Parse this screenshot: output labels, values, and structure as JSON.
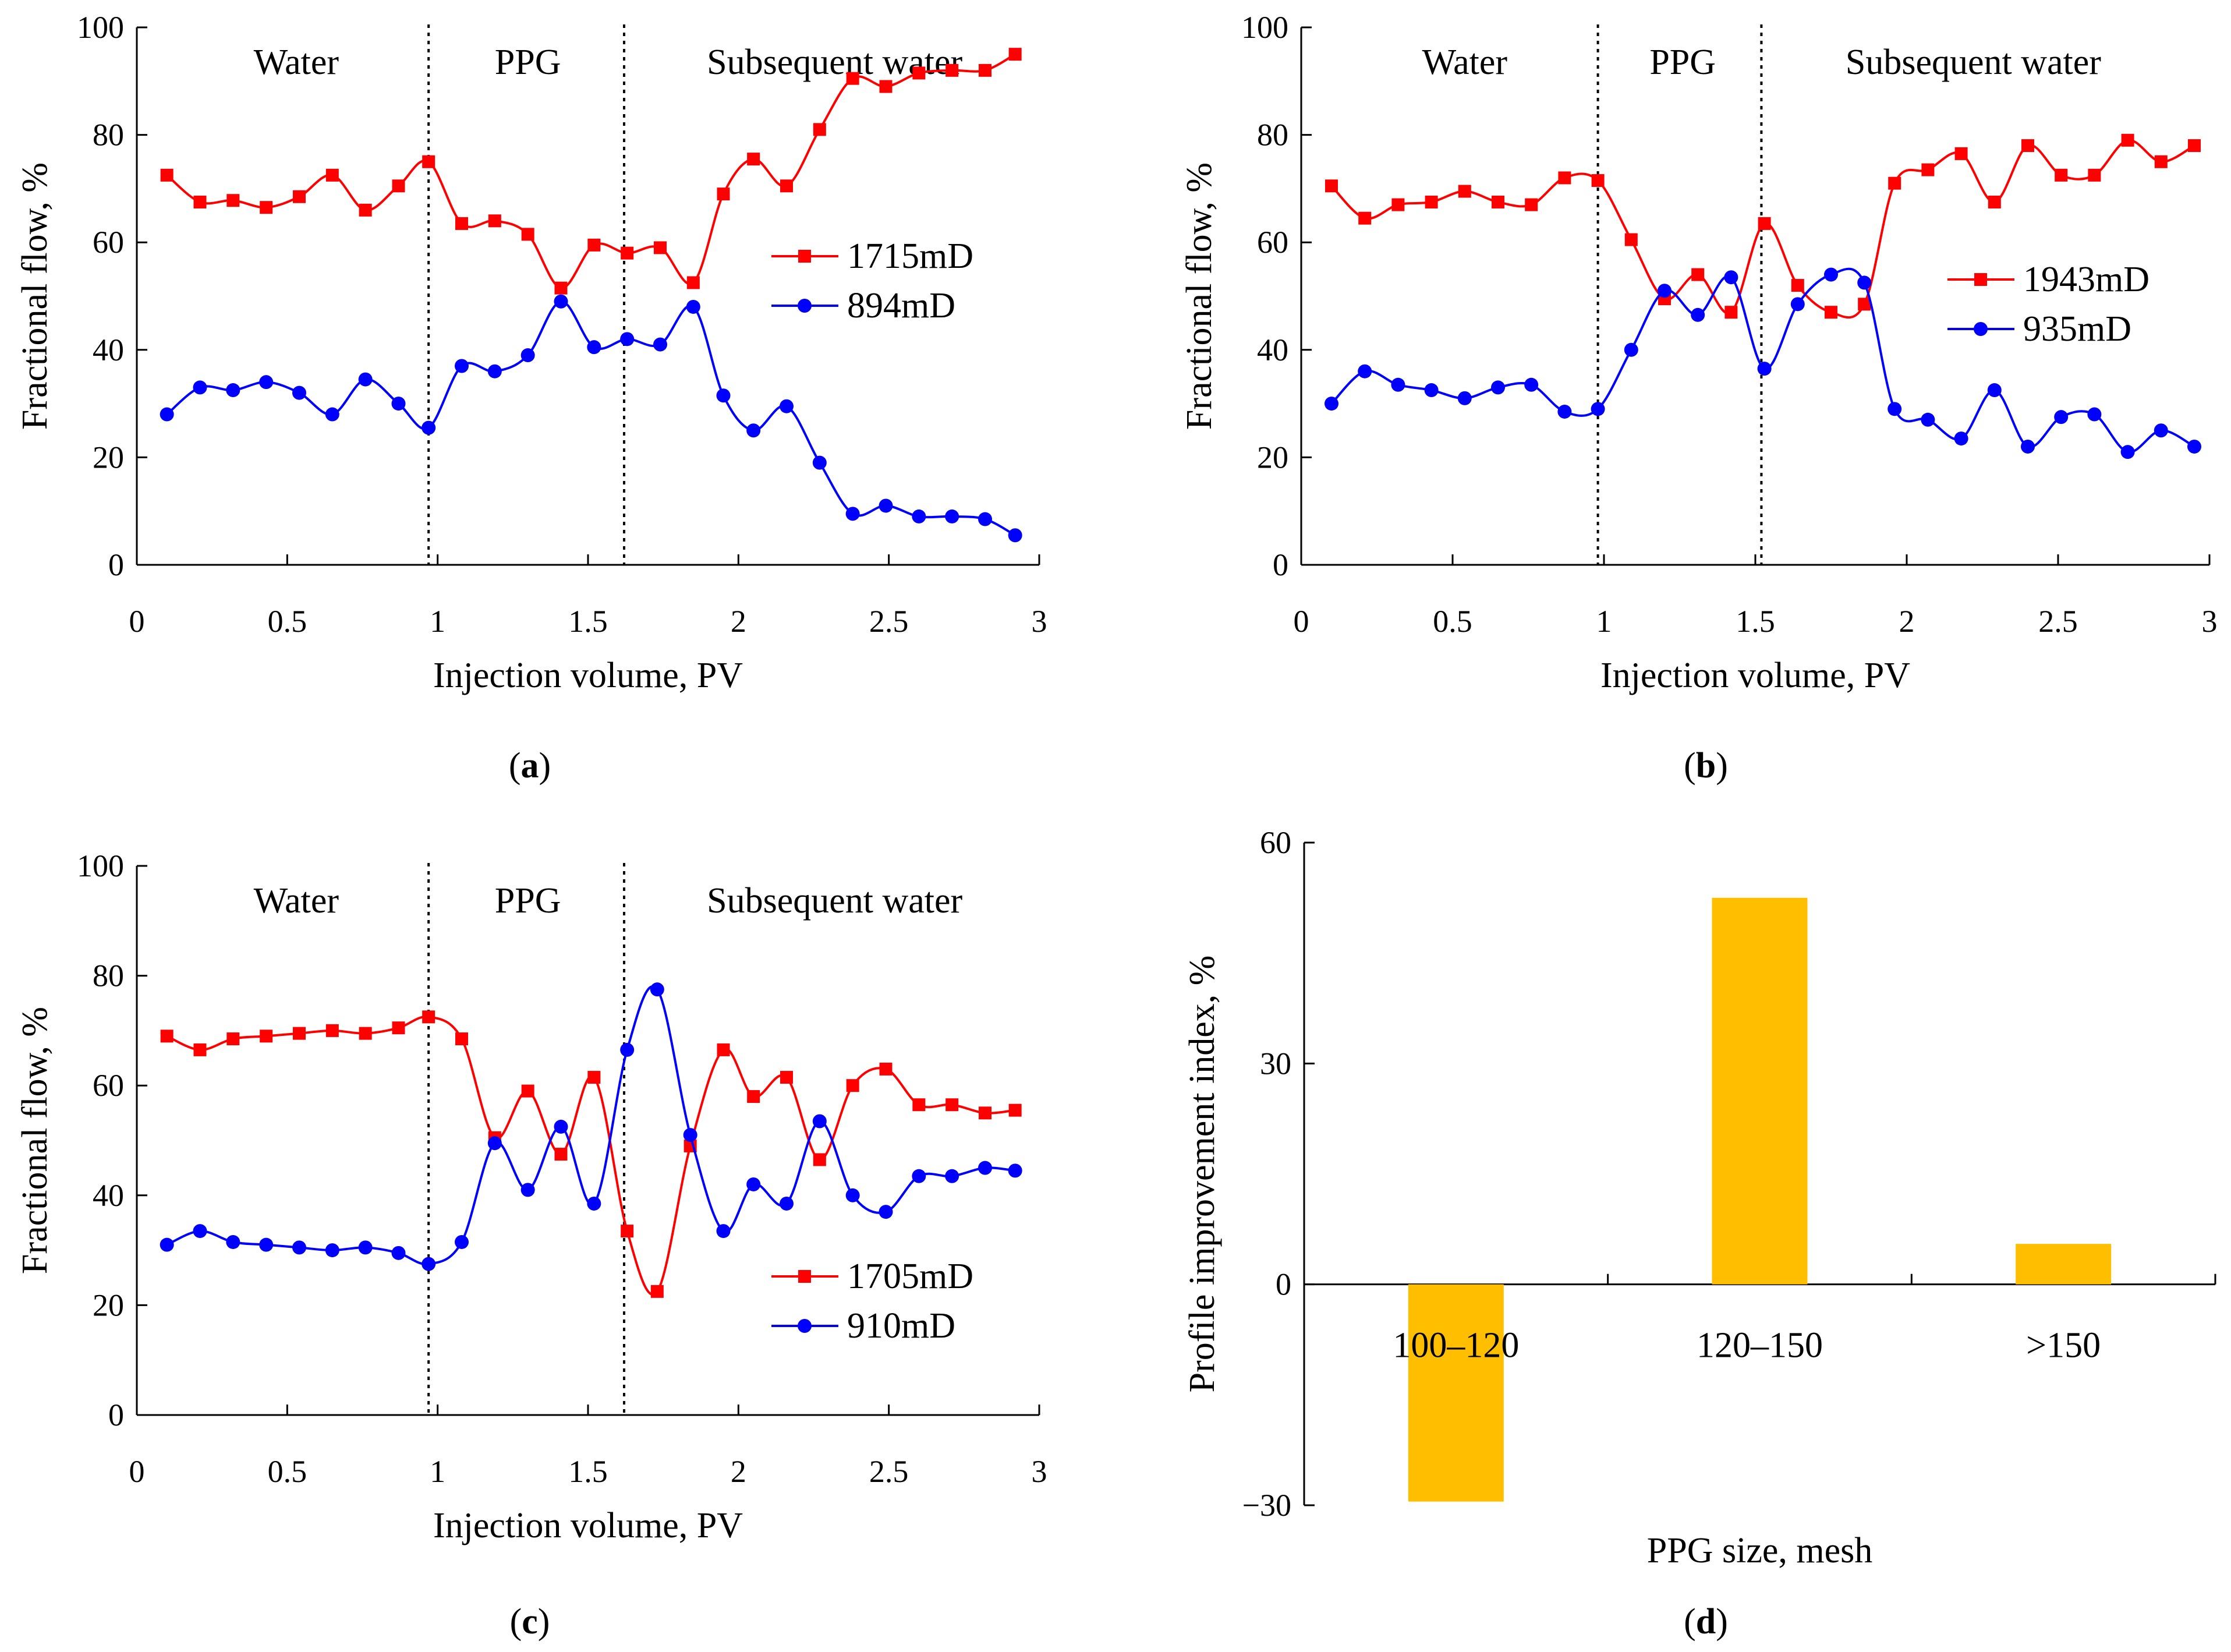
{
  "figure": {
    "panel_labels": [
      "a",
      "b",
      "c",
      "d"
    ]
  },
  "colors": {
    "series_high": "#ff0000",
    "series_low": "#0000ff",
    "bar": "#ffbf00",
    "axis": "#000000"
  },
  "chart_data": [
    {
      "id": "a",
      "type": "line",
      "xlabel": "Injection volume, PV",
      "ylabel": "Fractional flow, %",
      "xlim": [
        0,
        3
      ],
      "ylim": [
        0,
        100
      ],
      "xticks": [
        0,
        0.5,
        1,
        1.5,
        2,
        2.5,
        3
      ],
      "xtick_labels": [
        "0",
        "0.5",
        "1",
        "1.5",
        "2",
        "2.5",
        "3"
      ],
      "yticks": [
        0,
        20,
        40,
        60,
        80,
        100
      ],
      "ytick_labels": [
        "0",
        "20",
        "40",
        "60",
        "80",
        "100"
      ],
      "phase_boundaries": [
        0.97,
        1.62
      ],
      "phases": [
        {
          "label": "Water",
          "x": 0.53
        },
        {
          "label": "PPG",
          "x": 1.3
        },
        {
          "label": "Subsequent water",
          "x": 2.32
        }
      ],
      "legend_position": "center-right",
      "series": [
        {
          "name": "1715mD",
          "marker": "square",
          "color_key": "series_high",
          "x": [
            0.1,
            0.21,
            0.32,
            0.43,
            0.54,
            0.65,
            0.76,
            0.87,
            0.97,
            1.08,
            1.19,
            1.3,
            1.41,
            1.52,
            1.63,
            1.74,
            1.85,
            1.95,
            2.05,
            2.16,
            2.27,
            2.38,
            2.49,
            2.6,
            2.71,
            2.82,
            2.92
          ],
          "values": [
            72.5,
            67.5,
            67.8,
            66.5,
            68.5,
            72.5,
            66.0,
            70.5,
            75.0,
            63.5,
            64.0,
            61.5,
            51.5,
            59.5,
            58.0,
            59.0,
            52.5,
            69.0,
            75.5,
            70.5,
            81.0,
            90.5,
            89.0,
            91.5,
            92.0,
            92.0,
            95.0
          ]
        },
        {
          "name": "894mD",
          "marker": "circle",
          "color_key": "series_low",
          "x": [
            0.1,
            0.21,
            0.32,
            0.43,
            0.54,
            0.65,
            0.76,
            0.87,
            0.97,
            1.08,
            1.19,
            1.3,
            1.41,
            1.52,
            1.63,
            1.74,
            1.85,
            1.95,
            2.05,
            2.16,
            2.27,
            2.38,
            2.49,
            2.6,
            2.71,
            2.82,
            2.92
          ],
          "values": [
            28.0,
            33.0,
            32.5,
            34.0,
            32.0,
            28.0,
            34.5,
            30.0,
            25.5,
            37.0,
            36.0,
            39.0,
            49.0,
            40.5,
            42.0,
            41.0,
            48.0,
            31.5,
            25.0,
            29.5,
            19.0,
            9.5,
            11.0,
            9.0,
            9.0,
            8.5,
            5.5
          ]
        }
      ]
    },
    {
      "id": "b",
      "type": "line",
      "xlabel": "Injection volume, PV",
      "ylabel": "Fractional flow, %",
      "xlim": [
        0,
        3
      ],
      "ylim": [
        0,
        100
      ],
      "xticks": [
        0,
        0.5,
        1,
        1.5,
        2,
        2.5,
        3
      ],
      "xtick_labels": [
        "0",
        "0.5",
        "1",
        "1.5",
        "2",
        "2.5",
        "3"
      ],
      "yticks": [
        0,
        20,
        40,
        60,
        80,
        100
      ],
      "ytick_labels": [
        "0",
        "20",
        "40",
        "60",
        "80",
        "100"
      ],
      "phase_boundaries": [
        0.98,
        1.52
      ],
      "phases": [
        {
          "label": "Water",
          "x": 0.54
        },
        {
          "label": "PPG",
          "x": 1.26
        },
        {
          "label": "Subsequent water",
          "x": 2.22
        }
      ],
      "legend_position": "center-right",
      "series": [
        {
          "name": "1943mD",
          "marker": "square",
          "color_key": "series_high",
          "x": [
            0.1,
            0.21,
            0.32,
            0.43,
            0.54,
            0.65,
            0.76,
            0.87,
            0.98,
            1.09,
            1.2,
            1.31,
            1.42,
            1.53,
            1.64,
            1.75,
            1.86,
            1.96,
            2.07,
            2.18,
            2.29,
            2.4,
            2.51,
            2.62,
            2.73,
            2.84,
            2.95
          ],
          "values": [
            70.5,
            64.5,
            67.0,
            67.5,
            69.5,
            67.5,
            67.0,
            72.0,
            71.5,
            60.5,
            49.5,
            54.0,
            47.0,
            63.5,
            52.0,
            47.0,
            48.5,
            71.0,
            73.5,
            76.5,
            67.5,
            78.0,
            72.5,
            72.5,
            79.0,
            75.0,
            78.0
          ]
        },
        {
          "name": "935mD",
          "marker": "circle",
          "color_key": "series_low",
          "x": [
            0.1,
            0.21,
            0.32,
            0.43,
            0.54,
            0.65,
            0.76,
            0.87,
            0.98,
            1.09,
            1.2,
            1.31,
            1.42,
            1.53,
            1.64,
            1.75,
            1.86,
            1.96,
            2.07,
            2.18,
            2.29,
            2.4,
            2.51,
            2.62,
            2.73,
            2.84,
            2.95
          ],
          "values": [
            30.0,
            36.0,
            33.5,
            32.5,
            31.0,
            33.0,
            33.5,
            28.5,
            29.0,
            40.0,
            51.0,
            46.5,
            53.5,
            36.5,
            48.5,
            54.0,
            52.5,
            29.0,
            27.0,
            23.5,
            32.5,
            22.0,
            27.5,
            28.0,
            21.0,
            25.0,
            22.0
          ]
        }
      ]
    },
    {
      "id": "c",
      "type": "line",
      "xlabel": "Injection volume, PV",
      "ylabel": "Fractional flow, %",
      "xlim": [
        0,
        3
      ],
      "ylim": [
        0,
        100
      ],
      "xticks": [
        0,
        0.5,
        1,
        1.5,
        2,
        2.5,
        3
      ],
      "xtick_labels": [
        "0",
        "0.5",
        "1",
        "1.5",
        "2",
        "2.5",
        "3"
      ],
      "yticks": [
        0,
        20,
        40,
        60,
        80,
        100
      ],
      "ytick_labels": [
        "0",
        "20",
        "40",
        "60",
        "80",
        "100"
      ],
      "phase_boundaries": [
        0.97,
        1.62
      ],
      "phases": [
        {
          "label": "Water",
          "x": 0.53
        },
        {
          "label": "PPG",
          "x": 1.3
        },
        {
          "label": "Subsequent water",
          "x": 2.32
        }
      ],
      "legend_position": "bottom-right",
      "series": [
        {
          "name": "1705mD",
          "marker": "square",
          "color_key": "series_high",
          "x": [
            0.1,
            0.21,
            0.32,
            0.43,
            0.54,
            0.65,
            0.76,
            0.87,
            0.97,
            1.08,
            1.19,
            1.3,
            1.41,
            1.52,
            1.63,
            1.73,
            1.84,
            1.95,
            2.05,
            2.16,
            2.27,
            2.38,
            2.49,
            2.6,
            2.71,
            2.82,
            2.92
          ],
          "values": [
            69.0,
            66.5,
            68.5,
            69.0,
            69.5,
            70.0,
            69.5,
            70.5,
            72.5,
            68.5,
            50.5,
            59.0,
            47.5,
            61.5,
            33.5,
            22.5,
            49.0,
            66.5,
            58.0,
            61.5,
            46.5,
            60.0,
            63.0,
            56.5,
            56.5,
            55.0,
            55.5
          ]
        },
        {
          "name": "910mD",
          "marker": "circle",
          "color_key": "series_low",
          "x": [
            0.1,
            0.21,
            0.32,
            0.43,
            0.54,
            0.65,
            0.76,
            0.87,
            0.97,
            1.08,
            1.19,
            1.3,
            1.41,
            1.52,
            1.63,
            1.73,
            1.84,
            1.95,
            2.05,
            2.16,
            2.27,
            2.38,
            2.49,
            2.6,
            2.71,
            2.82,
            2.92
          ],
          "values": [
            31.0,
            33.5,
            31.5,
            31.0,
            30.5,
            30.0,
            30.5,
            29.5,
            27.5,
            31.5,
            49.5,
            41.0,
            52.5,
            38.5,
            66.5,
            77.5,
            51.0,
            33.5,
            42.0,
            38.5,
            53.5,
            40.0,
            37.0,
            43.5,
            43.5,
            45.0,
            44.5
          ]
        }
      ]
    },
    {
      "id": "d",
      "type": "bar",
      "xlabel": "PPG size, mesh",
      "ylabel": "Profile improvement index, %",
      "categories": [
        "100–120",
        "120–150",
        ">150"
      ],
      "values": [
        -29.5,
        52.5,
        5.5
      ],
      "ylim": [
        -30,
        60
      ],
      "yticks": [
        -30,
        0,
        30,
        60
      ],
      "ytick_labels": [
        "−30",
        "0",
        "30",
        "60"
      ],
      "color_key": "bar"
    }
  ]
}
